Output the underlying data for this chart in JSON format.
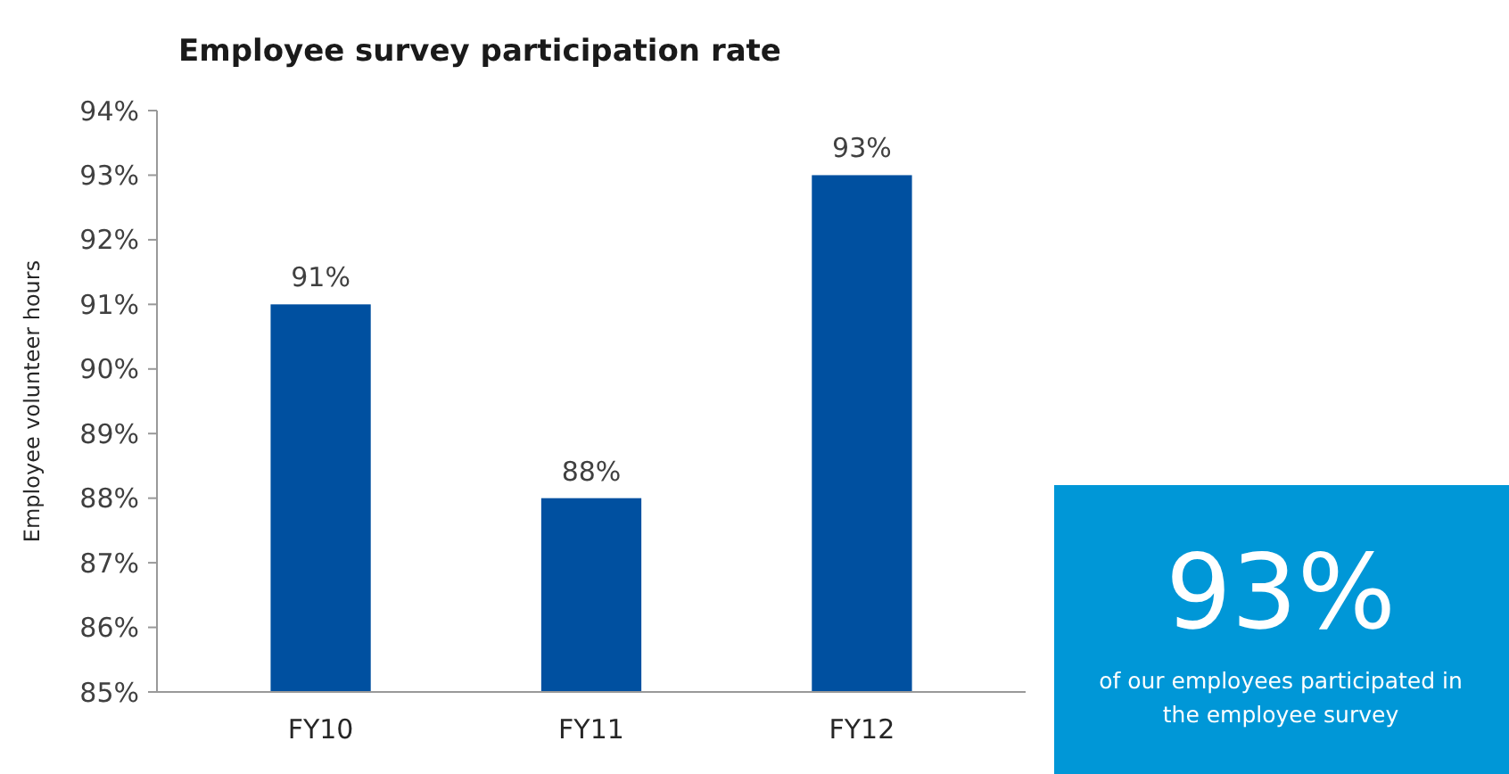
{
  "chart_data": {
    "type": "bar",
    "title": "Employee  survey participation  rate",
    "ylabel": "Employee  volunteer  hours",
    "categories": [
      "FY10",
      "FY11",
      "FY12"
    ],
    "series": [
      {
        "color": "#0050a0",
        "values": [
          91,
          88,
          93
        ],
        "value_labels": [
          "91%",
          "88%",
          "93%"
        ]
      }
    ],
    "ylim": [
      85,
      94
    ],
    "yticks": [
      {
        "value": 85,
        "label": "85%"
      },
      {
        "value": 86,
        "label": "86%"
      },
      {
        "value": 87,
        "label": "87%"
      },
      {
        "value": 88,
        "label": "88%"
      },
      {
        "value": 89,
        "label": "89%"
      },
      {
        "value": 90,
        "label": "90%"
      },
      {
        "value": 91,
        "label": "91%"
      },
      {
        "value": 92,
        "label": "92%"
      },
      {
        "value": 93,
        "label": "93%"
      },
      {
        "value": 94,
        "label": "94%"
      }
    ],
    "grid": false,
    "annotations": [
      "93%",
      "of our employees participated in the employee survey"
    ]
  }
}
